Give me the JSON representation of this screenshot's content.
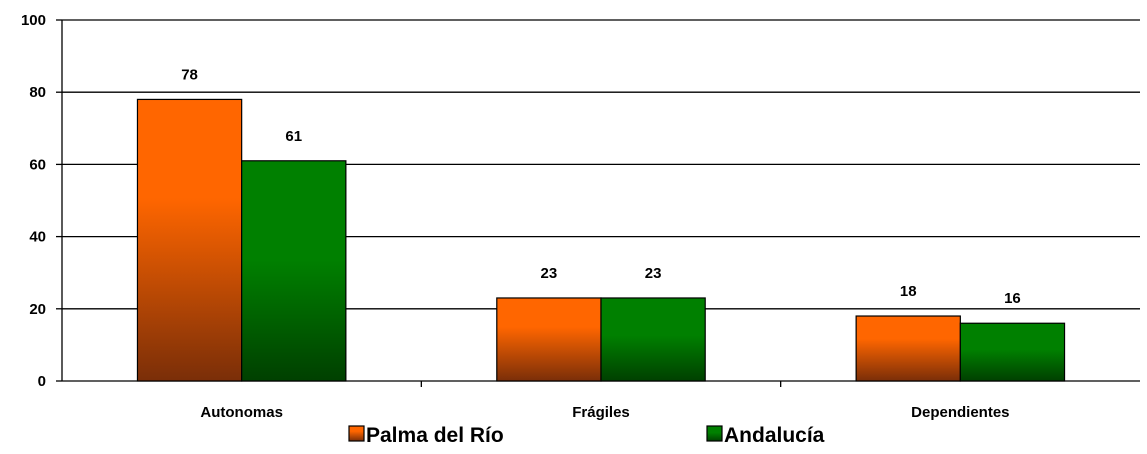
{
  "chart_data": {
    "type": "bar",
    "categories": [
      "Autonomas",
      "Frágiles",
      "Dependientes"
    ],
    "series": [
      {
        "name": "Palma del Río",
        "values": [
          78,
          23,
          18
        ],
        "color": "#ff6600",
        "color_dark": "#7a2e08"
      },
      {
        "name": "Andalucía",
        "values": [
          61,
          23,
          16
        ],
        "color": "#008000",
        "color_dark": "#004000"
      }
    ],
    "ylim": [
      0,
      100
    ],
    "yticks": [
      0,
      20,
      40,
      60,
      80,
      100
    ],
    "grid": true,
    "legend_position": "bottom",
    "title": "",
    "xlabel": "",
    "ylabel": ""
  }
}
